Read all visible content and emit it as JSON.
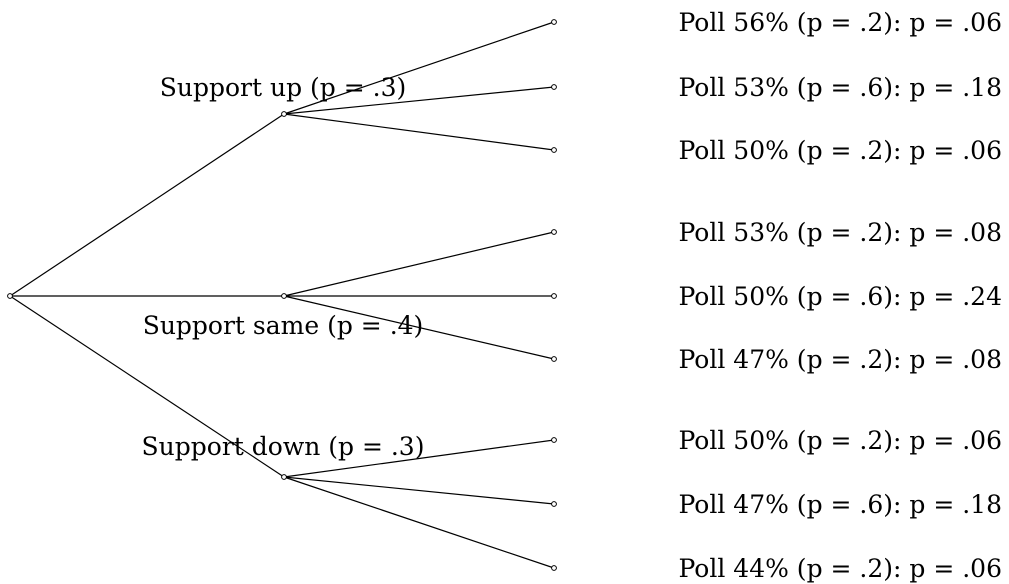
{
  "tree": {
    "root": {
      "name": "root"
    },
    "branches": [
      {
        "label": "Support up (p = .3)",
        "leaves": [
          "Poll 56% (p = .2): p = .06",
          "Poll 53% (p = .6): p = .18",
          "Poll 50% (p = .2): p = .06"
        ]
      },
      {
        "label": "Support same (p = .4)",
        "leaves": [
          "Poll 53% (p = .2): p = .08",
          "Poll 50% (p = .6): p = .24",
          "Poll 47% (p = .2): p = .08"
        ]
      },
      {
        "label": "Support down (p = .3)",
        "leaves": [
          "Poll 50% (p = .2): p = .06",
          "Poll 47% (p = .6): p = .18",
          "Poll 44% (p = .2): p = .06"
        ]
      }
    ]
  }
}
